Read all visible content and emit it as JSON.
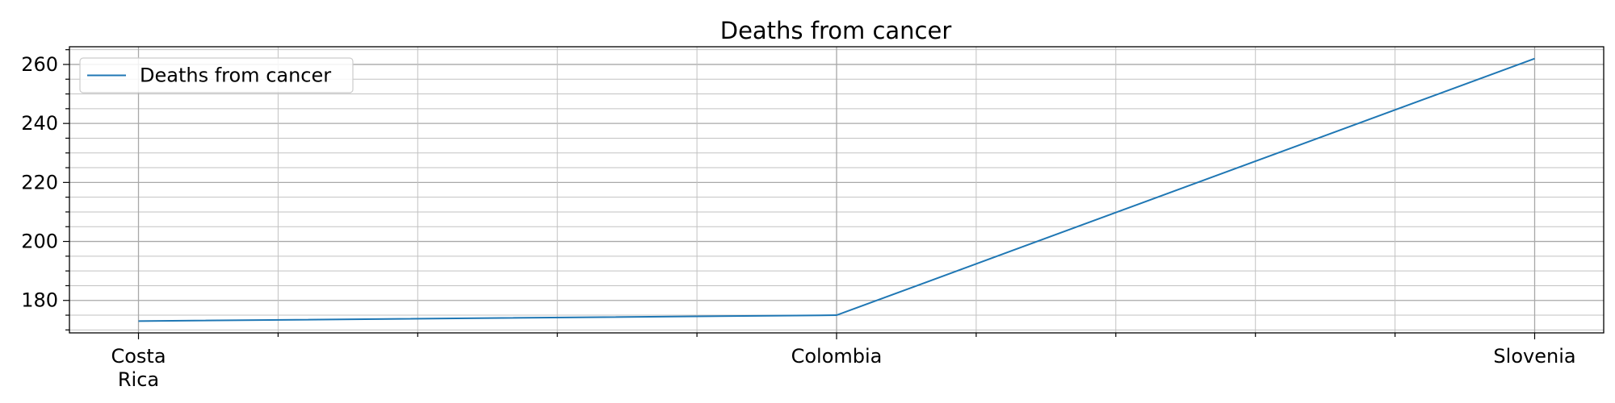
{
  "chart_data": {
    "type": "line",
    "title": "Deaths from cancer",
    "xlabel": "",
    "ylabel": "",
    "categories": [
      "Costa Rica",
      "Colombia",
      "Slovenia"
    ],
    "category_tick_lines": [
      [
        "Costa",
        "Rica"
      ],
      [
        "Colombia"
      ],
      [
        "Slovenia"
      ]
    ],
    "series": [
      {
        "name": "Deaths from cancer",
        "values": [
          173,
          175,
          262
        ],
        "color": "#1f77b4"
      }
    ],
    "ylim": [
      169,
      266
    ],
    "yticks": [
      180,
      200,
      220,
      240,
      260
    ],
    "ytick_labels": [
      "180",
      "200",
      "220",
      "240",
      "260"
    ],
    "y_minor_step": 5,
    "x_minor_divisions": 5,
    "grid": true,
    "legend_position": "upper-left"
  }
}
